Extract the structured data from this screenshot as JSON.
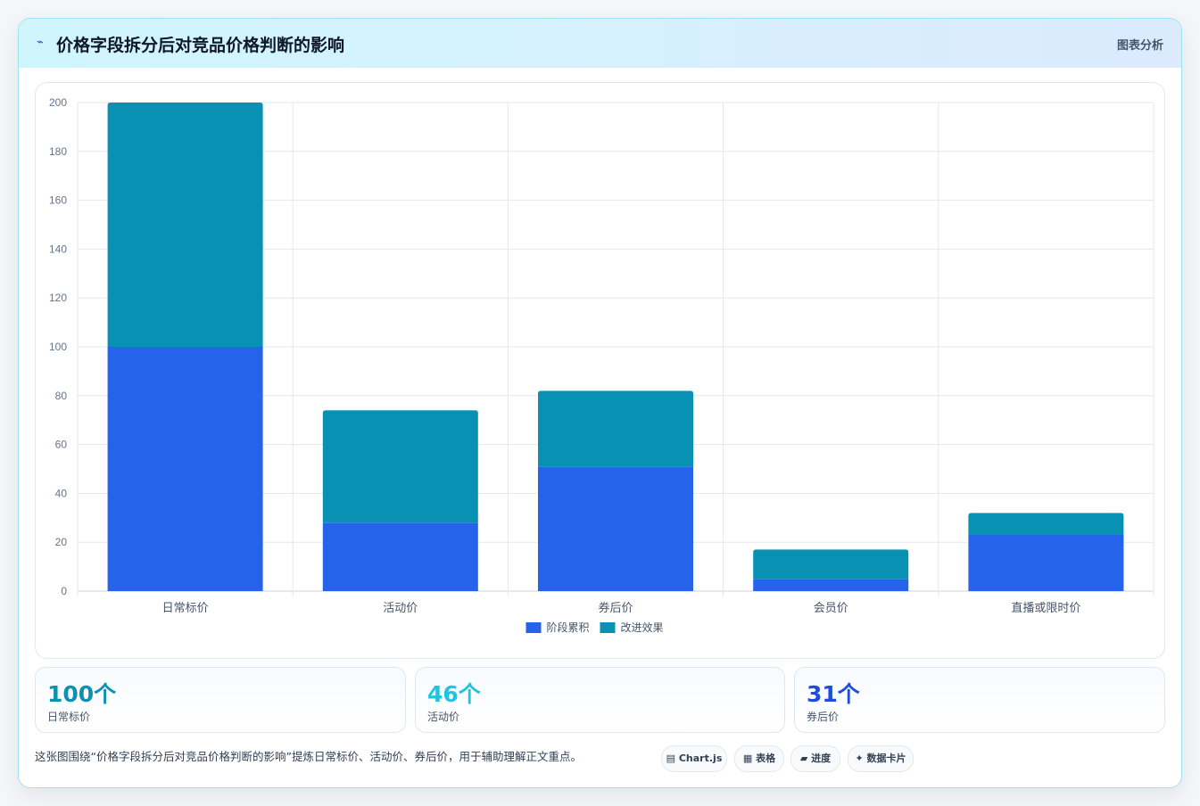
{
  "header": {
    "logo_icon": "trend-line-icon",
    "title": "价格字段拆分后对竞品价格判断的影响",
    "tag": "图表分析"
  },
  "chart_data": {
    "type": "bar",
    "stacked": true,
    "categories": [
      "日常标价",
      "活动价",
      "券后价",
      "会员价",
      "直播或限时价"
    ],
    "series": [
      {
        "name": "阶段累积",
        "color": "#2563eb",
        "values": [
          100,
          28,
          51,
          5,
          23
        ]
      },
      {
        "name": "改进效果",
        "color": "#0891b2",
        "values": [
          100,
          46,
          31,
          12,
          9
        ]
      }
    ],
    "ylim": [
      0,
      200
    ],
    "yticks": [
      0,
      20,
      40,
      60,
      80,
      100,
      120,
      140,
      160,
      180,
      200
    ],
    "grid": true,
    "legend": "bottom-center"
  },
  "stats": [
    {
      "value": "100个",
      "label": "日常标价",
      "color": "#0e91b0"
    },
    {
      "value": "46个",
      "label": "活动价",
      "color": "#22c4dd"
    },
    {
      "value": "31个",
      "label": "券后价",
      "color": "#1d4ed8"
    }
  ],
  "footer": {
    "note": "这张图围绕“价格字段拆分后对竞品价格判断的影响”提炼日常标价、活动价、券后价，用于辅助理解正文重点。",
    "chips": [
      {
        "icon": "chart-icon",
        "glyph": "▤",
        "label": "Chart.js"
      },
      {
        "icon": "table-icon",
        "glyph": "▦",
        "label": "表格"
      },
      {
        "icon": "progress-icon",
        "glyph": "▰",
        "label": "进度"
      },
      {
        "icon": "sparkle-icon",
        "glyph": "✦",
        "label": "数据卡片"
      }
    ]
  }
}
